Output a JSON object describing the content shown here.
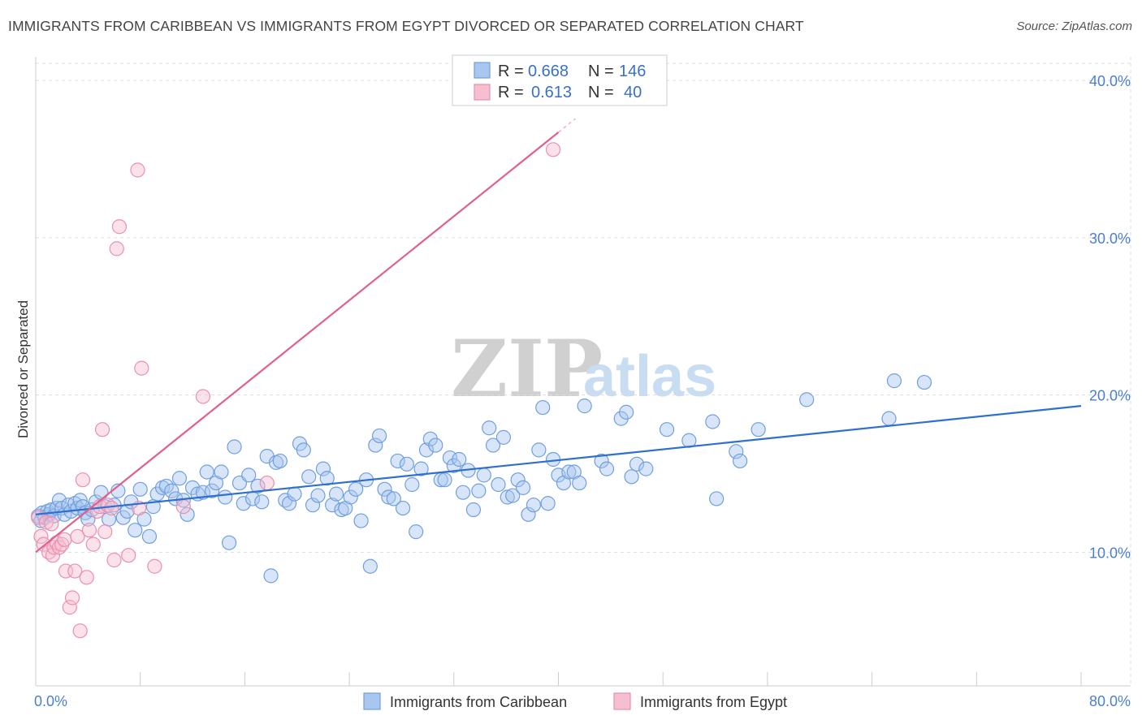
{
  "title": "IMMIGRANTS FROM CARIBBEAN VS IMMIGRANTS FROM EGYPT DIVORCED OR SEPARATED CORRELATION CHART",
  "source": "Source: ZipAtlas.com",
  "watermark": {
    "zip": "ZIP",
    "atlas": "atlas"
  },
  "colors": {
    "blue_fill": "#a9c6ef",
    "blue_stroke": "#6f9fe0",
    "blue_line": "#2f6fd0",
    "pink_fill": "#f6bfd0",
    "pink_stroke": "#ea8fae",
    "pink_line": "#e2608c",
    "tick_text": "#4a7fd0",
    "grid": "#dddddd"
  },
  "legend": {
    "rows": [
      {
        "r_label": "R =",
        "r_value": "0.668",
        "n_label": "N =",
        "n_value": "146"
      },
      {
        "r_label": "R =",
        "r_value": "0.613",
        "n_label": "N =",
        "n_value": "40"
      }
    ]
  },
  "chart_data": {
    "type": "scatter",
    "title": "IMMIGRANTS FROM CARIBBEAN VS IMMIGRANTS FROM EGYPT DIVORCED OR SEPARATED CORRELATION CHART",
    "xlabel": "",
    "ylabel": "Divorced or Separated",
    "xlim": [
      0,
      80
    ],
    "ylim": [
      1.5,
      41.5
    ],
    "x_tick_labels": [
      "0.0%",
      "80.0%"
    ],
    "y_ticks": [
      10,
      20,
      30,
      40
    ],
    "y_tick_labels": [
      "10.0%",
      "20.0%",
      "30.0%",
      "40.0%"
    ],
    "grid": true,
    "series": [
      {
        "name": "Immigrants from Caribbean",
        "color": "#a9c6ef",
        "trend": {
          "x0": 0,
          "y0": 12.4,
          "x1": 80,
          "y1": 19.3
        },
        "points": [
          [
            0.2,
            12.3
          ],
          [
            0.4,
            12.0
          ],
          [
            0.5,
            12.5
          ],
          [
            0.7,
            12.2
          ],
          [
            0.9,
            12.6
          ],
          [
            1.0,
            12.4
          ],
          [
            1.2,
            12.7
          ],
          [
            1.4,
            12.3
          ],
          [
            1.6,
            12.8
          ],
          [
            1.8,
            13.3
          ],
          [
            2.0,
            12.8
          ],
          [
            2.2,
            12.4
          ],
          [
            2.5,
            13.0
          ],
          [
            2.7,
            12.6
          ],
          [
            3.0,
            13.1
          ],
          [
            3.2,
            12.8
          ],
          [
            3.4,
            13.3
          ],
          [
            3.6,
            12.9
          ],
          [
            3.8,
            12.5
          ],
          [
            4.0,
            12.1
          ],
          [
            4.3,
            12.7
          ],
          [
            4.6,
            13.2
          ],
          [
            5.0,
            13.8
          ],
          [
            5.3,
            12.9
          ],
          [
            5.6,
            12.1
          ],
          [
            6.0,
            13.0
          ],
          [
            6.3,
            13.9
          ],
          [
            6.7,
            12.2
          ],
          [
            7.0,
            12.6
          ],
          [
            7.3,
            13.2
          ],
          [
            7.6,
            11.4
          ],
          [
            8.0,
            14.0
          ],
          [
            8.3,
            12.1
          ],
          [
            8.7,
            11.0
          ],
          [
            9.0,
            12.9
          ],
          [
            9.3,
            13.7
          ],
          [
            9.7,
            14.1
          ],
          [
            10.0,
            14.2
          ],
          [
            10.4,
            13.9
          ],
          [
            10.7,
            13.4
          ],
          [
            11.0,
            14.7
          ],
          [
            11.3,
            13.3
          ],
          [
            11.6,
            12.4
          ],
          [
            12.0,
            14.1
          ],
          [
            12.4,
            13.7
          ],
          [
            12.8,
            13.8
          ],
          [
            13.1,
            15.1
          ],
          [
            13.5,
            13.9
          ],
          [
            13.8,
            14.4
          ],
          [
            14.2,
            15.1
          ],
          [
            14.5,
            13.5
          ],
          [
            14.8,
            10.6
          ],
          [
            15.2,
            16.7
          ],
          [
            15.6,
            14.4
          ],
          [
            15.9,
            13.1
          ],
          [
            16.3,
            14.9
          ],
          [
            16.6,
            13.4
          ],
          [
            17.0,
            14.2
          ],
          [
            17.3,
            13.2
          ],
          [
            17.7,
            16.1
          ],
          [
            18.0,
            8.5
          ],
          [
            18.4,
            15.7
          ],
          [
            18.7,
            15.8
          ],
          [
            19.1,
            13.3
          ],
          [
            19.4,
            13.1
          ],
          [
            19.8,
            13.7
          ],
          [
            20.2,
            16.9
          ],
          [
            20.5,
            16.5
          ],
          [
            20.9,
            14.8
          ],
          [
            21.2,
            13.0
          ],
          [
            21.6,
            13.6
          ],
          [
            22.0,
            15.3
          ],
          [
            22.3,
            14.7
          ],
          [
            22.7,
            13.0
          ],
          [
            23.0,
            13.7
          ],
          [
            23.4,
            12.7
          ],
          [
            23.7,
            12.8
          ],
          [
            24.1,
            13.5
          ],
          [
            24.5,
            14.0
          ],
          [
            24.9,
            12.0
          ],
          [
            25.3,
            14.6
          ],
          [
            25.6,
            9.1
          ],
          [
            26.0,
            16.8
          ],
          [
            26.3,
            17.4
          ],
          [
            26.7,
            14.0
          ],
          [
            27.0,
            13.5
          ],
          [
            27.4,
            13.4
          ],
          [
            27.7,
            15.8
          ],
          [
            28.1,
            12.8
          ],
          [
            28.4,
            15.6
          ],
          [
            28.8,
            14.3
          ],
          [
            29.1,
            11.3
          ],
          [
            29.5,
            15.3
          ],
          [
            29.9,
            16.5
          ],
          [
            30.2,
            17.2
          ],
          [
            30.6,
            16.8
          ],
          [
            31.0,
            14.6
          ],
          [
            31.3,
            14.6
          ],
          [
            31.7,
            16.0
          ],
          [
            32.0,
            15.5
          ],
          [
            32.4,
            15.9
          ],
          [
            32.7,
            13.8
          ],
          [
            33.1,
            15.2
          ],
          [
            33.5,
            12.7
          ],
          [
            33.9,
            13.9
          ],
          [
            34.3,
            14.9
          ],
          [
            34.7,
            17.9
          ],
          [
            35.0,
            16.8
          ],
          [
            35.4,
            14.3
          ],
          [
            35.8,
            17.3
          ],
          [
            36.1,
            13.5
          ],
          [
            36.5,
            13.6
          ],
          [
            36.9,
            14.6
          ],
          [
            37.3,
            14.1
          ],
          [
            37.7,
            12.4
          ],
          [
            38.1,
            13.0
          ],
          [
            38.5,
            16.5
          ],
          [
            38.8,
            19.2
          ],
          [
            39.2,
            13.1
          ],
          [
            39.6,
            15.9
          ],
          [
            40.0,
            14.9
          ],
          [
            40.4,
            14.4
          ],
          [
            40.8,
            15.1
          ],
          [
            41.2,
            15.1
          ],
          [
            41.6,
            14.4
          ],
          [
            42.0,
            19.3
          ],
          [
            43.3,
            15.8
          ],
          [
            43.7,
            15.3
          ],
          [
            44.8,
            18.5
          ],
          [
            45.2,
            18.9
          ],
          [
            45.6,
            14.8
          ],
          [
            46.0,
            15.6
          ],
          [
            46.7,
            15.3
          ],
          [
            48.3,
            17.8
          ],
          [
            50.0,
            17.1
          ],
          [
            51.8,
            18.3
          ],
          [
            52.1,
            13.4
          ],
          [
            53.6,
            16.4
          ],
          [
            53.9,
            15.8
          ],
          [
            55.3,
            17.8
          ],
          [
            59.0,
            19.7
          ],
          [
            65.3,
            18.5
          ],
          [
            65.7,
            20.9
          ],
          [
            68.0,
            20.8
          ]
        ]
      },
      {
        "name": "Immigrants from Egypt",
        "color": "#f6bfd0",
        "trend": {
          "x0": 0,
          "y0": 10.0,
          "x1": 40,
          "y1": 36.7
        },
        "points": [
          [
            0.2,
            12.2
          ],
          [
            0.4,
            11.0
          ],
          [
            0.6,
            10.5
          ],
          [
            0.8,
            11.9
          ],
          [
            1.0,
            10.0
          ],
          [
            1.2,
            11.8
          ],
          [
            1.3,
            9.8
          ],
          [
            1.4,
            10.3
          ],
          [
            1.6,
            10.6
          ],
          [
            1.8,
            10.3
          ],
          [
            2.0,
            10.5
          ],
          [
            2.2,
            10.8
          ],
          [
            2.3,
            8.8
          ],
          [
            2.6,
            6.5
          ],
          [
            2.8,
            7.1
          ],
          [
            3.0,
            8.8
          ],
          [
            3.2,
            11.0
          ],
          [
            3.4,
            5.0
          ],
          [
            3.6,
            14.6
          ],
          [
            3.9,
            8.4
          ],
          [
            4.1,
            11.4
          ],
          [
            4.4,
            10.5
          ],
          [
            4.7,
            12.6
          ],
          [
            4.9,
            12.9
          ],
          [
            5.1,
            17.8
          ],
          [
            5.3,
            11.3
          ],
          [
            5.5,
            13.0
          ],
          [
            5.8,
            12.8
          ],
          [
            6.0,
            9.5
          ],
          [
            6.2,
            29.3
          ],
          [
            6.4,
            30.7
          ],
          [
            7.1,
            9.8
          ],
          [
            7.8,
            34.3
          ],
          [
            7.9,
            12.8
          ],
          [
            8.1,
            21.7
          ],
          [
            9.1,
            9.1
          ],
          [
            11.3,
            12.9
          ],
          [
            12.8,
            19.9
          ],
          [
            17.7,
            14.4
          ],
          [
            39.6,
            35.6
          ]
        ]
      }
    ]
  }
}
